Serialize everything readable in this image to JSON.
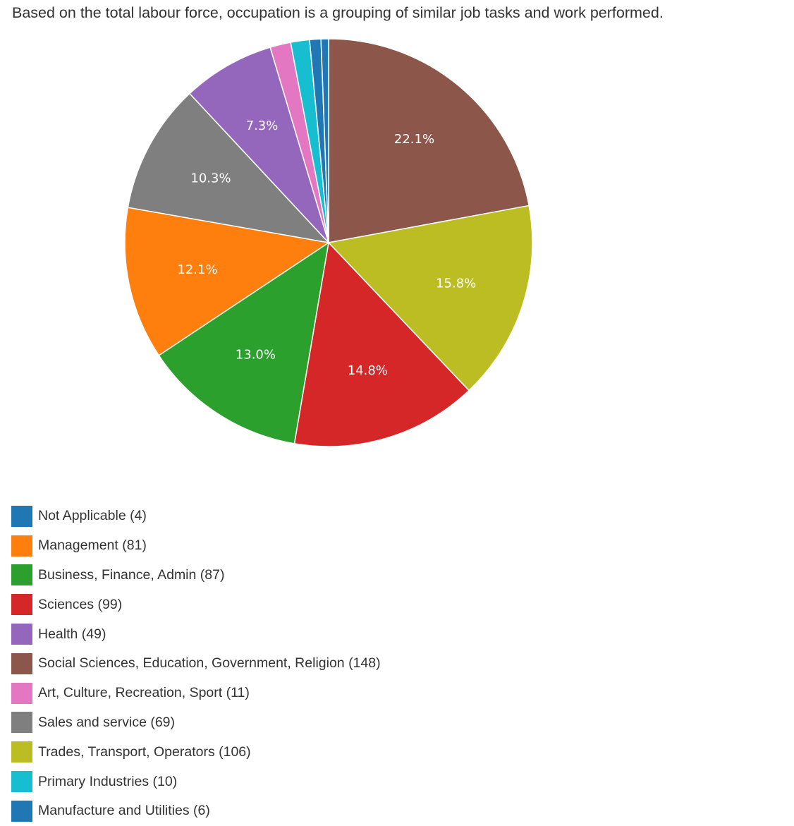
{
  "description": "Based on the total labour force, occupation is a grouping of similar job tasks and work performed.",
  "chart_data": {
    "type": "pie",
    "start_angle_deg": 0,
    "direction": "clockwise",
    "slices": [
      {
        "name": "Social Sciences, Education, Government, Religion",
        "value": 148,
        "label": "22.1%",
        "color": "#8c564b"
      },
      {
        "name": "Trades, Transport, Operators",
        "value": 106,
        "label": "15.8%",
        "color": "#bcbd22"
      },
      {
        "name": "Sciences",
        "value": 99,
        "label": "14.8%",
        "color": "#d62728"
      },
      {
        "name": "Business, Finance, Admin",
        "value": 87,
        "label": "13.0%",
        "color": "#2ca02c"
      },
      {
        "name": "Management",
        "value": 81,
        "label": "12.1%",
        "color": "#ff7f0e"
      },
      {
        "name": "Sales and service",
        "value": 69,
        "label": "10.3%",
        "color": "#7f7f7f"
      },
      {
        "name": "Health",
        "value": 49,
        "label": "7.3%",
        "color": "#9467bd"
      },
      {
        "name": "Art, Culture, Recreation, Sport",
        "value": 11,
        "label": "",
        "color": "#e377c2"
      },
      {
        "name": "Primary Industries",
        "value": 10,
        "label": "",
        "color": "#17becf"
      },
      {
        "name": "Manufacture and Utilities",
        "value": 6,
        "label": "",
        "color": "#1f77b4"
      },
      {
        "name": "Not Applicable",
        "value": 4,
        "label": "",
        "color": "#1f77b4"
      }
    ],
    "legend": [
      {
        "label": "Not Applicable (4)",
        "color": "#1f77b4"
      },
      {
        "label": "Management (81)",
        "color": "#ff7f0e"
      },
      {
        "label": "Business, Finance, Admin (87)",
        "color": "#2ca02c"
      },
      {
        "label": "Sciences (99)",
        "color": "#d62728"
      },
      {
        "label": "Health (49)",
        "color": "#9467bd"
      },
      {
        "label": "Social Sciences, Education, Government, Religion (148)",
        "color": "#8c564b"
      },
      {
        "label": "Art, Culture, Recreation, Sport (11)",
        "color": "#e377c2"
      },
      {
        "label": "Sales and service (69)",
        "color": "#7f7f7f"
      },
      {
        "label": "Trades, Transport, Operators (106)",
        "color": "#bcbd22"
      },
      {
        "label": "Primary Industries (10)",
        "color": "#17becf"
      },
      {
        "label": "Manufacture and Utilities (6)",
        "color": "#1f77b4"
      }
    ],
    "legend_position": "bottom"
  }
}
